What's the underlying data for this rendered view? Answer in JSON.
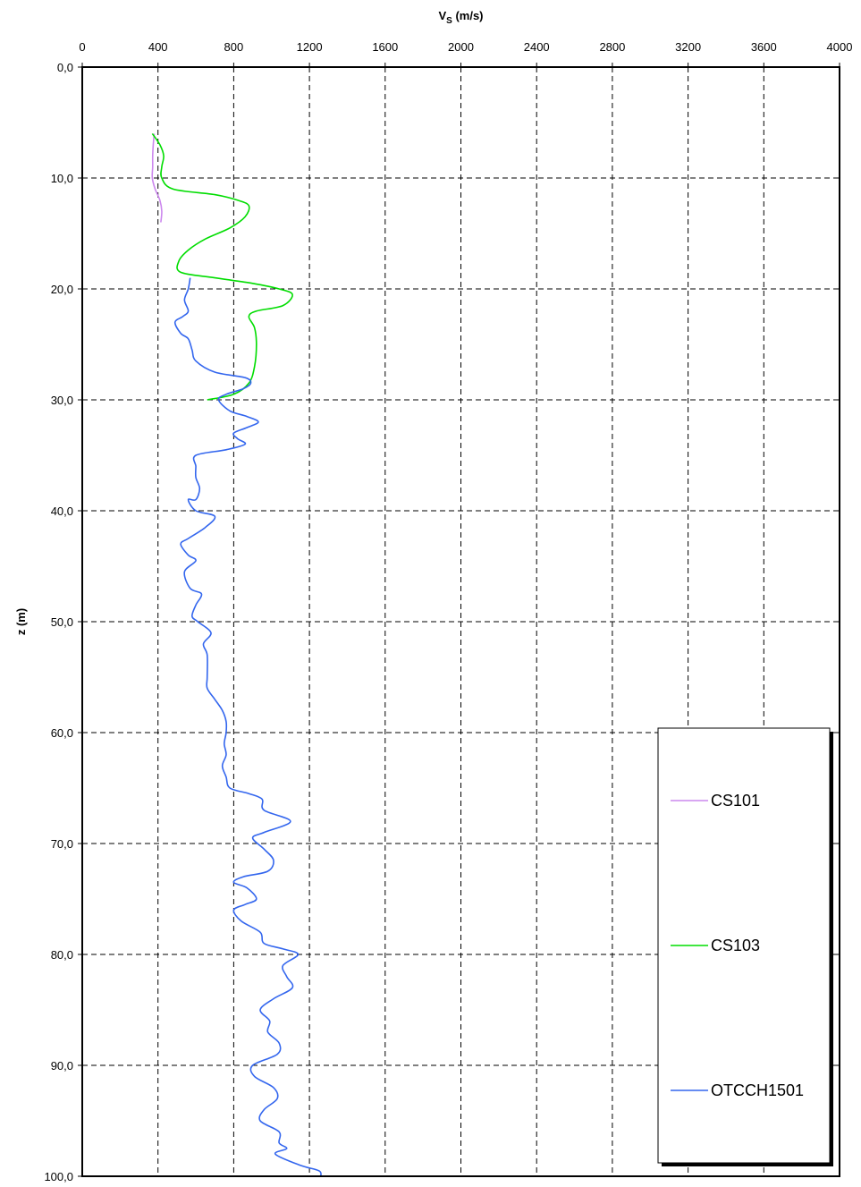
{
  "chart_data": {
    "type": "line",
    "title": "",
    "xlabel_main": "V",
    "xlabel_sub": "S",
    "xlabel_unit": " (m/s)",
    "ylabel": "z (m)",
    "xlim": [
      0,
      4000
    ],
    "ylim": [
      0,
      100
    ],
    "y_inverted": true,
    "x_axis_position": "top",
    "grid": true,
    "legend_position": "bottom-right",
    "x_ticks": [
      0,
      400,
      800,
      1200,
      1600,
      2000,
      2400,
      2800,
      3200,
      3600,
      4000
    ],
    "x_tick_labels": [
      "0",
      "400",
      "800",
      "1200",
      "1600",
      "2000",
      "2400",
      "2800",
      "3200",
      "3600",
      "4000"
    ],
    "y_ticks": [
      0,
      10,
      20,
      30,
      40,
      50,
      60,
      70,
      80,
      90,
      100
    ],
    "y_tick_labels": [
      "0,0",
      "10,0",
      "20,0",
      "30,0",
      "40,0",
      "50,0",
      "60,0",
      "70,0",
      "80,0",
      "90,0",
      "100,0"
    ],
    "series": [
      {
        "name": "CS101",
        "color": "#cc88ee",
        "points": [
          [
            380,
            6
          ],
          [
            375,
            7
          ],
          [
            372,
            8
          ],
          [
            372,
            9
          ],
          [
            370,
            10
          ],
          [
            385,
            11
          ],
          [
            410,
            12
          ],
          [
            420,
            13
          ],
          [
            415,
            14
          ]
        ]
      },
      {
        "name": "CS103",
        "color": "#00dd00",
        "points": [
          [
            370,
            6
          ],
          [
            410,
            7
          ],
          [
            430,
            8
          ],
          [
            420,
            9
          ],
          [
            420,
            10
          ],
          [
            480,
            11
          ],
          [
            700,
            11.5
          ],
          [
            820,
            12
          ],
          [
            880,
            12.5
          ],
          [
            860,
            13.5
          ],
          [
            780,
            14.5
          ],
          [
            650,
            15.5
          ],
          [
            560,
            16.5
          ],
          [
            510,
            17.5
          ],
          [
            520,
            18.5
          ],
          [
            700,
            19
          ],
          [
            900,
            19.5
          ],
          [
            1040,
            20
          ],
          [
            1110,
            20.5
          ],
          [
            1060,
            21.5
          ],
          [
            920,
            22
          ],
          [
            880,
            22.5
          ],
          [
            910,
            23.5
          ],
          [
            920,
            25
          ],
          [
            910,
            27
          ],
          [
            880,
            28.5
          ],
          [
            800,
            29.5
          ],
          [
            660,
            30
          ]
        ]
      },
      {
        "name": "OTCCH1501",
        "color": "#3366ee",
        "points": [
          [
            570,
            19
          ],
          [
            560,
            20
          ],
          [
            540,
            21
          ],
          [
            560,
            22
          ],
          [
            530,
            22.5
          ],
          [
            490,
            23
          ],
          [
            520,
            24
          ],
          [
            560,
            24.5
          ],
          [
            580,
            25.5
          ],
          [
            600,
            26.5
          ],
          [
            700,
            27.5
          ],
          [
            860,
            28
          ],
          [
            890,
            28.5
          ],
          [
            850,
            29
          ],
          [
            760,
            29.5
          ],
          [
            720,
            30
          ],
          [
            780,
            31
          ],
          [
            870,
            31.5
          ],
          [
            930,
            32
          ],
          [
            870,
            32.5
          ],
          [
            800,
            33
          ],
          [
            820,
            33.5
          ],
          [
            860,
            34
          ],
          [
            760,
            34.5
          ],
          [
            600,
            35
          ],
          [
            600,
            36
          ],
          [
            600,
            37
          ],
          [
            620,
            38
          ],
          [
            600,
            39
          ],
          [
            560,
            39
          ],
          [
            600,
            40
          ],
          [
            700,
            40.5
          ],
          [
            650,
            41.5
          ],
          [
            560,
            42.5
          ],
          [
            520,
            43
          ],
          [
            560,
            44
          ],
          [
            600,
            44.5
          ],
          [
            540,
            45.5
          ],
          [
            570,
            47
          ],
          [
            630,
            47.5
          ],
          [
            600,
            48.5
          ],
          [
            580,
            49.5
          ],
          [
            610,
            50
          ],
          [
            680,
            51
          ],
          [
            640,
            52
          ],
          [
            660,
            53
          ],
          [
            660,
            55
          ],
          [
            660,
            56
          ],
          [
            700,
            57
          ],
          [
            740,
            58
          ],
          [
            760,
            59
          ],
          [
            760,
            60
          ],
          [
            750,
            61
          ],
          [
            760,
            62
          ],
          [
            740,
            63
          ],
          [
            760,
            64
          ],
          [
            780,
            65
          ],
          [
            880,
            65.5
          ],
          [
            950,
            66
          ],
          [
            960,
            67
          ],
          [
            1100,
            68
          ],
          [
            960,
            69
          ],
          [
            900,
            69.5
          ],
          [
            960,
            70.5
          ],
          [
            1010,
            71.5
          ],
          [
            980,
            72.5
          ],
          [
            850,
            73
          ],
          [
            800,
            73.5
          ],
          [
            870,
            74
          ],
          [
            920,
            75
          ],
          [
            860,
            75.5
          ],
          [
            800,
            76
          ],
          [
            840,
            77
          ],
          [
            940,
            78
          ],
          [
            960,
            79
          ],
          [
            1060,
            79.5
          ],
          [
            1140,
            80
          ],
          [
            1060,
            81
          ],
          [
            1080,
            82
          ],
          [
            1110,
            83
          ],
          [
            1010,
            84
          ],
          [
            940,
            85
          ],
          [
            990,
            86
          ],
          [
            980,
            87
          ],
          [
            1040,
            88
          ],
          [
            1030,
            89
          ],
          [
            900,
            90
          ],
          [
            910,
            91
          ],
          [
            1010,
            92
          ],
          [
            1030,
            93
          ],
          [
            960,
            94
          ],
          [
            940,
            95
          ],
          [
            1040,
            96
          ],
          [
            1040,
            97
          ],
          [
            1080,
            97.5
          ],
          [
            1020,
            98
          ],
          [
            1150,
            99
          ],
          [
            1250,
            99.5
          ],
          [
            1260,
            100
          ]
        ]
      }
    ]
  }
}
